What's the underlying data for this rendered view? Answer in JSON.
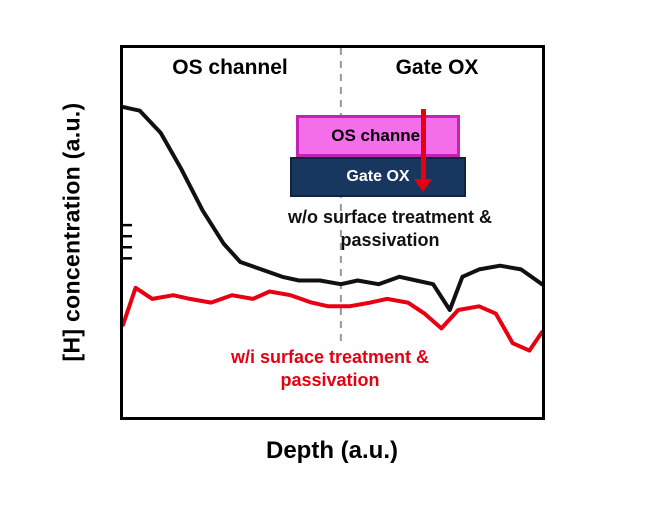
{
  "figure": {
    "ylabel": "[H] concentration (a.u.)",
    "xlabel": "Depth (a.u.)",
    "region_left": "OS channel",
    "region_right": "Gate OX",
    "annotation_black_line1": "w/o surface treatment &",
    "annotation_black_line2": "passivation",
    "annotation_red_line1": "w/i surface treatment &",
    "annotation_red_line2": "passivation",
    "inset": {
      "channel_label": "OS channel",
      "gate_label": "Gate OX"
    },
    "colors": {
      "black_series": "#111111",
      "red_series": "#e60012",
      "divider": "#999999",
      "inset_channel_fill": "#f36ee8",
      "inset_channel_border": "#c322b4",
      "inset_gate_fill": "#17375e",
      "inset_gate_border": "#10243c",
      "arrow": "#e60012"
    }
  },
  "chart_data": {
    "type": "line",
    "title": "",
    "xlabel": "Depth (a.u.)",
    "ylabel": "[H] concentration (a.u.)",
    "x_range": [
      0,
      1
    ],
    "y_range": [
      0,
      1
    ],
    "grid": false,
    "legend": "annotations inside plot",
    "divider_x": 0.52,
    "divider_color": "#999999",
    "divider_extent": 0.8,
    "y_ticks_minor": [
      0.43,
      0.46,
      0.49,
      0.52
    ],
    "series": [
      {
        "key": "wo-treatment",
        "name": "w/o surface treatment & passivation",
        "color": "#111111",
        "x": [
          0.0,
          0.04,
          0.09,
          0.14,
          0.19,
          0.24,
          0.28,
          0.33,
          0.38,
          0.42,
          0.47,
          0.52,
          0.56,
          0.61,
          0.66,
          0.7,
          0.74,
          0.78,
          0.81,
          0.85,
          0.9,
          0.95,
          1.0
        ],
        "y": [
          0.84,
          0.83,
          0.77,
          0.67,
          0.56,
          0.47,
          0.42,
          0.4,
          0.38,
          0.37,
          0.37,
          0.36,
          0.37,
          0.36,
          0.38,
          0.37,
          0.36,
          0.29,
          0.38,
          0.4,
          0.41,
          0.4,
          0.36
        ]
      },
      {
        "key": "wi-treatment",
        "name": "w/i surface treatment & passivation",
        "color": "#e60012",
        "x": [
          0.0,
          0.03,
          0.07,
          0.12,
          0.16,
          0.21,
          0.26,
          0.31,
          0.35,
          0.4,
          0.45,
          0.49,
          0.54,
          0.59,
          0.63,
          0.68,
          0.72,
          0.76,
          0.8,
          0.85,
          0.89,
          0.93,
          0.97,
          1.0
        ],
        "y": [
          0.25,
          0.35,
          0.32,
          0.33,
          0.32,
          0.31,
          0.33,
          0.32,
          0.34,
          0.33,
          0.31,
          0.3,
          0.3,
          0.31,
          0.32,
          0.31,
          0.28,
          0.24,
          0.29,
          0.3,
          0.28,
          0.2,
          0.18,
          0.23
        ]
      }
    ]
  }
}
